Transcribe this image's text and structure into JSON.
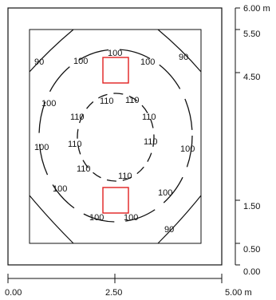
{
  "diagram": {
    "type": "isoline-plan",
    "room": {
      "width_m": 5.0,
      "depth_m": 6.0
    },
    "contour_label_color": "#111111",
    "luminaire_color": "#e02020",
    "x_axis": {
      "ticks": [
        {
          "value": 0.0,
          "label": "0.00"
        },
        {
          "value": 2.5,
          "label": "2.50"
        },
        {
          "value": 5.0,
          "label": "5.00 m"
        }
      ]
    },
    "y_axis": {
      "ticks": [
        {
          "value": 6.0,
          "label": "6.00 m"
        },
        {
          "value": 5.5,
          "label": "5.50"
        },
        {
          "value": 4.5,
          "label": "4.50"
        },
        {
          "value": 1.5,
          "label": "1.50"
        },
        {
          "value": 0.5,
          "label": "0.50"
        },
        {
          "value": 0.0,
          "label": "0.00"
        }
      ]
    },
    "contour_labels": [
      "90",
      "100",
      "100",
      "90",
      "100",
      "110",
      "110",
      "100",
      "110",
      "110",
      "100",
      "110",
      "110",
      "100",
      "110",
      "110",
      "100",
      "100",
      "100",
      "100",
      "90"
    ]
  }
}
